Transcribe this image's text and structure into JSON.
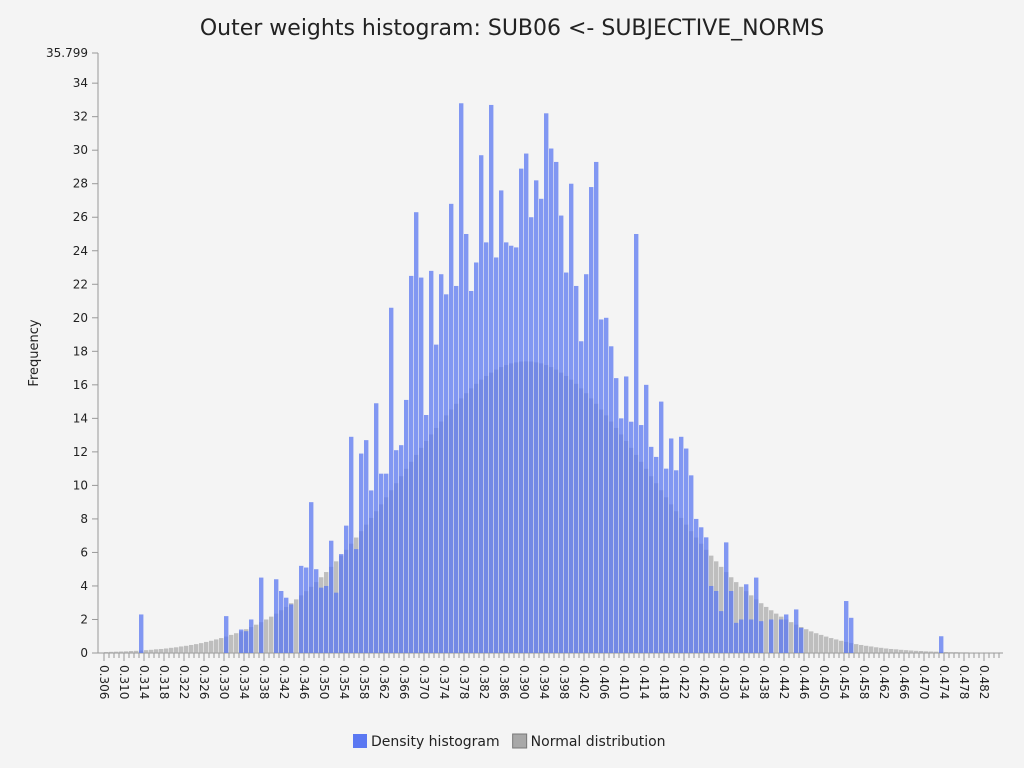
{
  "chart_data": {
    "type": "histogram",
    "title": "Outer weights histogram: SUB06 <- SUBJECTIVE_NORMS",
    "y_label": "Frequency",
    "bins": [
      0.306,
      0.307,
      0.308,
      0.309,
      0.31,
      0.311,
      0.312,
      0.313,
      0.314,
      0.315,
      0.316,
      0.317,
      0.318,
      0.319,
      0.32,
      0.321,
      0.322,
      0.323,
      0.324,
      0.325,
      0.326,
      0.327,
      0.328,
      0.329,
      0.33,
      0.331,
      0.332,
      0.333,
      0.334,
      0.335,
      0.336,
      0.337,
      0.338,
      0.339,
      0.34,
      0.341,
      0.342,
      0.343,
      0.344,
      0.345,
      0.346,
      0.347,
      0.348,
      0.349,
      0.35,
      0.351,
      0.352,
      0.353,
      0.354,
      0.355,
      0.356,
      0.357,
      0.358,
      0.359,
      0.36,
      0.361,
      0.362,
      0.363,
      0.364,
      0.365,
      0.366,
      0.367,
      0.368,
      0.369,
      0.37,
      0.371,
      0.372,
      0.373,
      0.374,
      0.375,
      0.376,
      0.377,
      0.378,
      0.379,
      0.38,
      0.381,
      0.382,
      0.383,
      0.384,
      0.385,
      0.386,
      0.387,
      0.388,
      0.389,
      0.39,
      0.391,
      0.392,
      0.393,
      0.394,
      0.395,
      0.396,
      0.397,
      0.398,
      0.399,
      0.4,
      0.401,
      0.402,
      0.403,
      0.404,
      0.405,
      0.406,
      0.407,
      0.408,
      0.409,
      0.41,
      0.411,
      0.412,
      0.413,
      0.414,
      0.415,
      0.416,
      0.417,
      0.418,
      0.419,
      0.42,
      0.421,
      0.422,
      0.423,
      0.424,
      0.425,
      0.426,
      0.427,
      0.428,
      0.429,
      0.43,
      0.431,
      0.432,
      0.433,
      0.434,
      0.435,
      0.436,
      0.437,
      0.438,
      0.439,
      0.44,
      0.441,
      0.442,
      0.443,
      0.444,
      0.445,
      0.446,
      0.447,
      0.448,
      0.449,
      0.45,
      0.451,
      0.452,
      0.453,
      0.454,
      0.455,
      0.456,
      0.457,
      0.458,
      0.459,
      0.46,
      0.461,
      0.462,
      0.463,
      0.464,
      0.465,
      0.466,
      0.467,
      0.468,
      0.469,
      0.47,
      0.471,
      0.472,
      0.473,
      0.474,
      0.475,
      0.476,
      0.477,
      0.478,
      0.479,
      0.48,
      0.481,
      0.482,
      0.483,
      0.484,
      0.485
    ],
    "series": [
      {
        "name": "Normal distribution",
        "color": "#a8a8a8",
        "values": [
          0.06,
          0.07,
          0.08,
          0.09,
          0.1,
          0.12,
          0.13,
          0.15,
          0.17,
          0.19,
          0.22,
          0.24,
          0.27,
          0.31,
          0.34,
          0.39,
          0.43,
          0.48,
          0.53,
          0.59,
          0.66,
          0.73,
          0.81,
          0.89,
          0.98,
          1.08,
          1.18,
          1.29,
          1.42,
          1.55,
          1.69,
          1.84,
          2,
          2.17,
          2.35,
          2.55,
          2.75,
          2.97,
          3.2,
          3.44,
          3.69,
          3.95,
          4.23,
          4.52,
          4.83,
          5.14,
          5.47,
          5.81,
          6.16,
          6.52,
          6.89,
          7.27,
          7.66,
          8.06,
          8.46,
          8.87,
          9.29,
          9.71,
          10.13,
          10.55,
          10.99,
          11.41,
          11.82,
          12.24,
          12.65,
          13.04,
          13.43,
          13.81,
          14.18,
          14.53,
          14.87,
          15.19,
          15.5,
          15.79,
          16.06,
          16.31,
          16.53,
          16.73,
          16.91,
          17.06,
          17.18,
          17.28,
          17.34,
          17.39,
          17.4,
          17.39,
          17.34,
          17.28,
          17.18,
          17.06,
          16.91,
          16.73,
          16.53,
          16.31,
          16.06,
          15.79,
          15.5,
          15.19,
          14.87,
          14.53,
          14.18,
          13.81,
          13.43,
          13.04,
          12.65,
          12.24,
          11.82,
          11.41,
          10.99,
          10.55,
          10.13,
          9.71,
          9.29,
          8.87,
          8.46,
          8.06,
          7.66,
          7.27,
          6.89,
          6.52,
          6.16,
          5.81,
          5.47,
          5.14,
          4.83,
          4.52,
          4.23,
          3.95,
          3.69,
          3.44,
          3.2,
          2.97,
          2.75,
          2.55,
          2.35,
          2.17,
          2,
          1.84,
          1.69,
          1.55,
          1.42,
          1.29,
          1.18,
          1.08,
          0.98,
          0.89,
          0.81,
          0.73,
          0.66,
          0.59,
          0.53,
          0.48,
          0.43,
          0.39,
          0.34,
          0.31,
          0.27,
          0.24,
          0.22,
          0.19,
          0.17,
          0.15,
          0.13,
          0.12,
          0.1,
          0.09,
          0.08,
          0.07,
          0.06,
          0.05,
          0.05,
          0.04,
          0.04,
          0.03,
          0.03,
          0.03,
          0.02,
          0.02,
          0.02
        ]
      },
      {
        "name": "Density histogram",
        "color": "#5b78f2",
        "values": [
          0,
          0,
          0,
          0,
          0,
          0,
          0,
          2.3,
          0,
          0,
          0,
          0,
          0,
          0,
          0,
          0,
          0,
          0,
          0,
          0,
          0,
          0,
          0,
          0,
          2.2,
          0,
          0,
          1.4,
          1.3,
          2.0,
          0,
          4.5,
          0,
          0,
          4.4,
          3.7,
          3.3,
          2.9,
          0,
          5.2,
          5.1,
          9.0,
          5.0,
          3.9,
          4.0,
          6.7,
          3.6,
          5.9,
          7.6,
          12.9,
          6.2,
          11.9,
          12.7,
          9.7,
          14.9,
          10.7,
          10.7,
          20.6,
          12.1,
          12.4,
          15.1,
          22.5,
          26.3,
          22.4,
          14.2,
          22.8,
          18.4,
          22.6,
          21.4,
          26.8,
          21.9,
          32.8,
          25.0,
          21.6,
          23.3,
          29.7,
          24.5,
          32.7,
          23.6,
          27.6,
          24.5,
          24.3,
          24.2,
          28.9,
          29.8,
          26.0,
          28.2,
          27.1,
          32.2,
          30.1,
          29.3,
          26.1,
          22.7,
          28.0,
          21.9,
          18.6,
          22.6,
          27.8,
          29.3,
          19.9,
          20.0,
          18.3,
          16.4,
          14.0,
          16.5,
          13.8,
          25.0,
          13.6,
          16.0,
          12.3,
          11.7,
          15.0,
          11.0,
          12.8,
          10.9,
          12.9,
          12.2,
          10.6,
          8.0,
          7.5,
          6.9,
          4.0,
          3.7,
          2.5,
          6.6,
          3.7,
          1.8,
          2.0,
          4.1,
          2.0,
          4.5,
          1.9,
          0,
          2.0,
          0,
          2.0,
          2.3,
          0,
          2.6,
          1.5,
          0,
          0,
          0,
          0,
          0,
          0,
          0,
          0,
          3.1,
          2.1,
          0,
          0,
          0,
          0,
          0,
          0,
          0,
          0,
          0,
          0,
          0,
          0,
          0,
          0,
          0,
          0,
          0,
          1.0,
          0,
          0,
          0,
          0,
          0,
          0,
          0,
          0,
          0,
          0,
          0
        ]
      }
    ],
    "xlim": [
      0.306,
      0.485
    ],
    "xticks": [
      0.306,
      {
        "value": 0.31,
        "label": "0.310"
      },
      0.314,
      0.318,
      0.322,
      0.326,
      {
        "value": 0.33,
        "label": "0.330"
      },
      0.334,
      0.338,
      0.342,
      0.346,
      {
        "value": 0.35,
        "label": "0.350"
      },
      0.354,
      0.358,
      0.362,
      0.366,
      {
        "value": 0.37,
        "label": "0.370"
      },
      0.374,
      0.378,
      0.382,
      0.386,
      {
        "value": 0.39,
        "label": "0.390"
      },
      0.394,
      0.398,
      0.402,
      0.406,
      {
        "value": 0.41,
        "label": "0.410"
      },
      0.414,
      0.418,
      0.422,
      0.426,
      {
        "value": 0.43,
        "label": "0.430"
      },
      0.434,
      0.438,
      0.442,
      0.446,
      {
        "value": 0.45,
        "label": "0.450"
      },
      0.454,
      0.458,
      0.462,
      0.466,
      {
        "value": 0.47,
        "label": "0.470"
      },
      0.474,
      0.478,
      0.482
    ],
    "ylim": [
      0,
      35.799
    ],
    "yticks": [
      0,
      2,
      4,
      6,
      8,
      10,
      12,
      14,
      16,
      18,
      20,
      22,
      24,
      26,
      28,
      30,
      32,
      34,
      35.799
    ],
    "legend": "bottom"
  }
}
